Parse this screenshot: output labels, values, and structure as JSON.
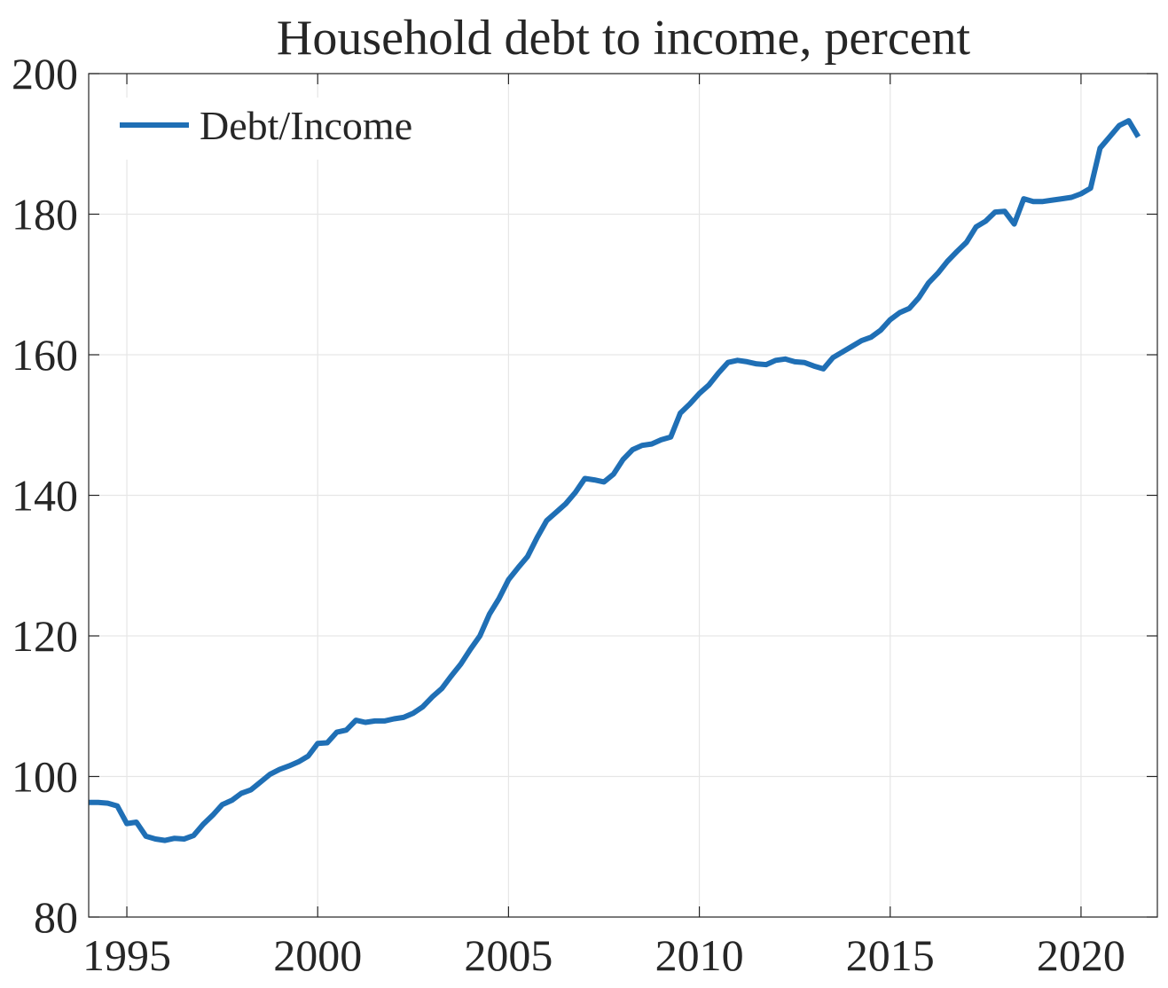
{
  "chart_data": {
    "type": "line",
    "title": "Household debt to income, percent",
    "xlabel": "",
    "ylabel": "",
    "xlim": [
      1994.0,
      2022.0
    ],
    "ylim": [
      80,
      200
    ],
    "xticks": [
      1995,
      2000,
      2005,
      2010,
      2015,
      2020
    ],
    "yticks": [
      80,
      100,
      120,
      140,
      160,
      180,
      200
    ],
    "grid": true,
    "legend_position": "top-left",
    "series": [
      {
        "name": "Debt/Income",
        "color": "#1f6fb5",
        "x": [
          1994.0,
          1994.25,
          1994.5,
          1994.75,
          1995.0,
          1995.25,
          1995.5,
          1995.75,
          1996.0,
          1996.25,
          1996.5,
          1996.75,
          1997.0,
          1997.25,
          1997.5,
          1997.75,
          1998.0,
          1998.25,
          1998.5,
          1998.75,
          1999.0,
          1999.25,
          1999.5,
          1999.75,
          2000.0,
          2000.25,
          2000.5,
          2000.75,
          2001.0,
          2001.25,
          2001.5,
          2001.75,
          2002.0,
          2002.25,
          2002.5,
          2002.75,
          2003.0,
          2003.25,
          2003.5,
          2003.75,
          2004.0,
          2004.25,
          2004.5,
          2004.75,
          2005.0,
          2005.25,
          2005.5,
          2005.75,
          2006.0,
          2006.25,
          2006.5,
          2006.75,
          2007.0,
          2007.25,
          2007.5,
          2007.75,
          2008.0,
          2008.25,
          2008.5,
          2008.75,
          2009.0,
          2009.25,
          2009.5,
          2009.75,
          2010.0,
          2010.25,
          2010.5,
          2010.75,
          2011.0,
          2011.25,
          2011.5,
          2011.75,
          2012.0,
          2012.25,
          2012.5,
          2012.75,
          2013.0,
          2013.25,
          2013.5,
          2013.75,
          2014.0,
          2014.25,
          2014.5,
          2014.75,
          2015.0,
          2015.25,
          2015.5,
          2015.75,
          2016.0,
          2016.25,
          2016.5,
          2016.75,
          2017.0,
          2017.25,
          2017.5,
          2017.75,
          2018.0,
          2018.25,
          2018.5,
          2018.75,
          2019.0,
          2019.25,
          2019.5,
          2019.75,
          2020.0,
          2020.25,
          2020.5,
          2020.75,
          2021.0,
          2021.25,
          2021.5
        ],
        "values": [
          96.3,
          96.3,
          96.2,
          95.8,
          93.3,
          93.5,
          91.5,
          91.1,
          90.9,
          91.2,
          91.1,
          91.6,
          93.2,
          94.5,
          96.0,
          96.6,
          97.6,
          98.1,
          99.2,
          100.3,
          101.0,
          101.5,
          102.1,
          102.9,
          104.7,
          104.8,
          106.3,
          106.6,
          108.0,
          107.7,
          107.9,
          107.9,
          108.2,
          108.4,
          109.0,
          109.9,
          111.3,
          112.5,
          114.3,
          116.0,
          118.1,
          120.0,
          123.1,
          125.3,
          128.0,
          129.7,
          131.3,
          134.0,
          136.4,
          137.6,
          138.8,
          140.4,
          142.4,
          142.2,
          141.9,
          143.0,
          145.1,
          146.5,
          147.1,
          147.3,
          147.9,
          148.3,
          151.7,
          153.0,
          154.5,
          155.7,
          157.4,
          158.9,
          159.2,
          159.0,
          158.7,
          158.6,
          159.2,
          159.4,
          159.0,
          158.9,
          158.4,
          158.0,
          159.6,
          160.4,
          161.2,
          162.0,
          162.5,
          163.5,
          165.0,
          166.0,
          166.6,
          168.1,
          170.2,
          171.6,
          173.3,
          174.7,
          176.0,
          178.2,
          179.0,
          180.3,
          180.4,
          178.6,
          182.2,
          181.8,
          181.8,
          182.0,
          182.2,
          182.4,
          182.9,
          183.7,
          189.4,
          191.0,
          192.6,
          193.3,
          191.0
        ]
      }
    ]
  }
}
